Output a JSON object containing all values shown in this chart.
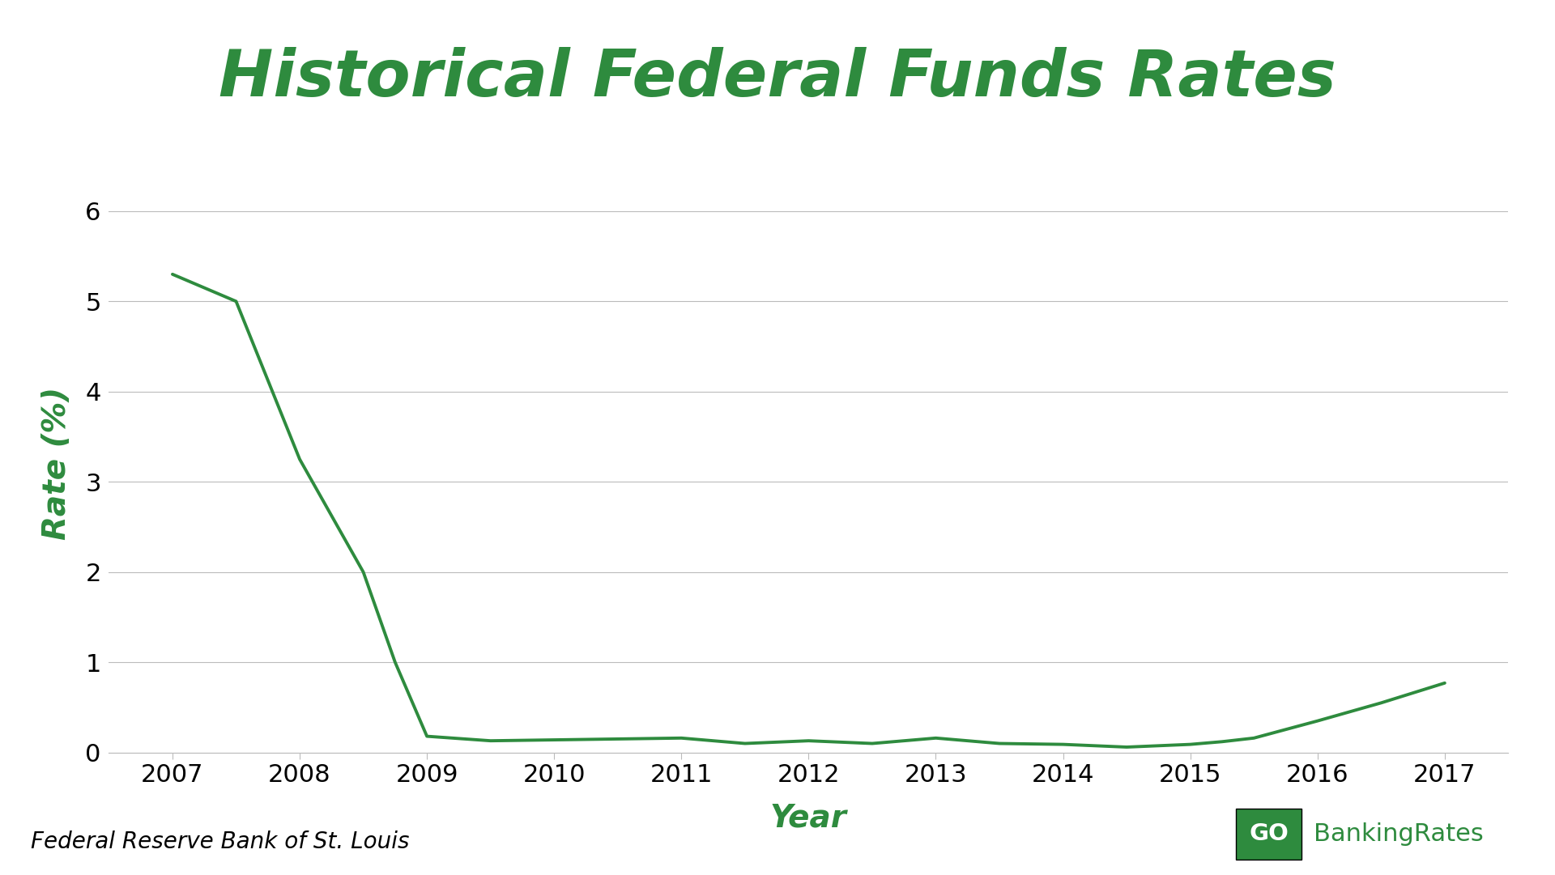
{
  "title": "Historical Federal Funds Rates",
  "xlabel": "Year",
  "ylabel": "Rate (%)",
  "source": "Federal Reserve Bank of St. Louis",
  "green_color": "#2e8b3e",
  "line_color": "#2e8b3e",
  "background_color": "#ffffff",
  "grid_color": "#bbbbbb",
  "years": [
    2007.0,
    2007.5,
    2008.0,
    2008.5,
    2008.75,
    2009.0,
    2009.5,
    2010.0,
    2010.5,
    2011.0,
    2011.5,
    2012.0,
    2012.5,
    2013.0,
    2013.5,
    2014.0,
    2014.5,
    2015.0,
    2015.25,
    2015.5,
    2016.0,
    2016.5,
    2017.0
  ],
  "rates": [
    5.3,
    5.0,
    3.25,
    2.0,
    1.0,
    0.18,
    0.13,
    0.14,
    0.15,
    0.16,
    0.1,
    0.13,
    0.1,
    0.16,
    0.1,
    0.09,
    0.06,
    0.09,
    0.12,
    0.16,
    0.35,
    0.55,
    0.77
  ],
  "xlim": [
    2006.5,
    2017.5
  ],
  "ylim": [
    0,
    6.4
  ],
  "yticks": [
    0,
    1,
    2,
    3,
    4,
    5,
    6
  ],
  "xticks": [
    2007,
    2008,
    2009,
    2010,
    2011,
    2012,
    2013,
    2014,
    2015,
    2016,
    2017
  ],
  "title_fontsize": 58,
  "axis_label_fontsize": 28,
  "tick_fontsize": 22,
  "source_fontsize": 20,
  "line_width": 2.8
}
